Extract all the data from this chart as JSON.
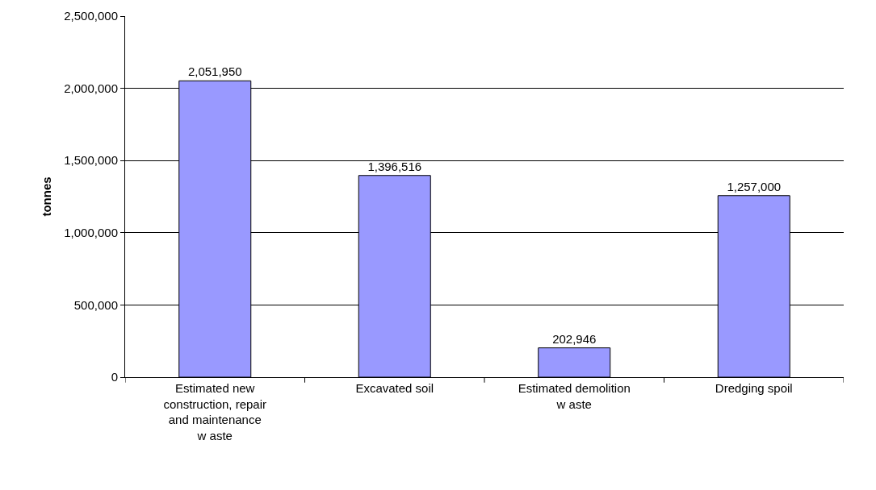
{
  "chart_data": {
    "type": "bar",
    "ylabel": "tonnes",
    "categories": [
      "Estimated new\nconstruction, repair\nand maintenance\nw aste",
      "Excavated soil",
      "Estimated demolition\nw aste",
      "Dredging spoil"
    ],
    "values": [
      2051950,
      1396516,
      202946,
      1257000
    ],
    "color": "#9999ff",
    "ylim": [
      0,
      2500000
    ],
    "yticks": [
      {
        "value": 0,
        "label": "0"
      },
      {
        "value": 500000,
        "label": "500,000"
      },
      {
        "value": 1000000,
        "label": "1,000,000"
      },
      {
        "value": 1500000,
        "label": "1,500,000"
      },
      {
        "value": 2000000,
        "label": "2,000,000"
      },
      {
        "value": 2500000,
        "label": "2,500,000"
      }
    ],
    "value_labels": [
      "2,051,950",
      "1,396,516",
      "202,946",
      "1,257,000"
    ],
    "grid": "y"
  }
}
